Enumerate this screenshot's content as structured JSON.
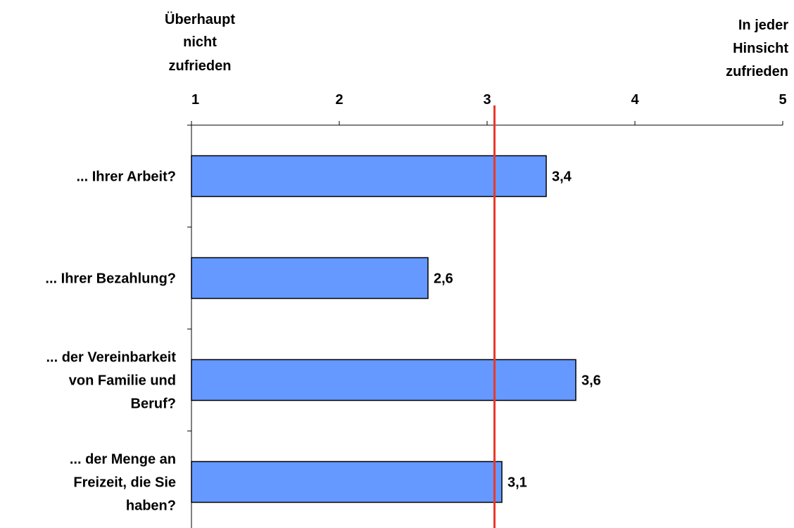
{
  "chart_data": {
    "type": "bar",
    "orientation": "horizontal",
    "scale_anchors": {
      "low_label": [
        "Überhaupt",
        "nicht",
        "zufrieden"
      ],
      "high_label": [
        "In jeder",
        "Hinsicht",
        "zufrieden"
      ]
    },
    "xlim": [
      1,
      5
    ],
    "xticks": [
      1,
      2,
      3,
      4,
      5
    ],
    "tick_labels": [
      "1",
      "2",
      "3",
      "4",
      "5"
    ],
    "categories": [
      [
        "... Ihrer Arbeit?"
      ],
      [
        "... Ihrer Bezahlung?"
      ],
      [
        "... der Vereinbarkeit",
        "von Familie und",
        "Beruf?"
      ],
      [
        "... der Menge an",
        "Freizeit, die Sie",
        "haben?"
      ]
    ],
    "values": [
      3.4,
      2.6,
      3.6,
      3.1
    ],
    "value_labels": [
      "3,4",
      "2,6",
      "3,6",
      "3,1"
    ],
    "reference_line": 3.05,
    "grid": false,
    "colors": {
      "bar_fill": "#6699ff",
      "bar_stroke": "#000000",
      "reference_line": "#e8392c",
      "axis": "#000000"
    }
  }
}
